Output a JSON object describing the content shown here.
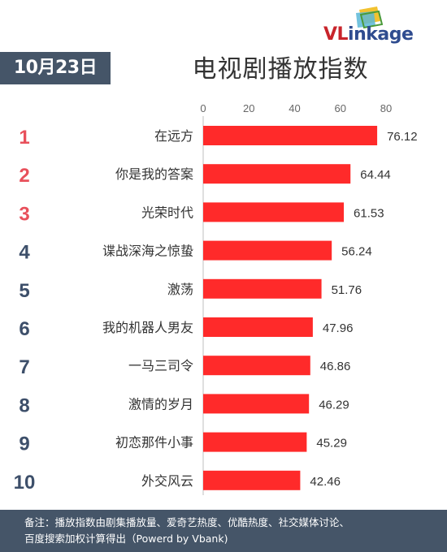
{
  "logo": {
    "text_v": "VL",
    "text_rest": "inkage"
  },
  "date": "10月23日",
  "title": "电视剧播放指数",
  "footer": {
    "line1": "备注：播放指数由剧集播放量、爱奇艺热度、优酷热度、社交媒体讨论、",
    "line2": "百度搜索加权计算得出（Powerd by Vbank)"
  },
  "colors": {
    "bar": "#ff2a2a",
    "rank_top": "#e8505b",
    "rank_rest": "#3d4f6a",
    "header_bg": "#455568"
  },
  "chart_data": {
    "type": "bar",
    "orientation": "horizontal",
    "categories": [
      "在远方",
      "你是我的答案",
      "光荣时代",
      "谍战深海之惊蛰",
      "激荡",
      "我的机器人男友",
      "一马三司令",
      "激情的岁月",
      "初恋那件小事",
      "外交风云"
    ],
    "ranks": [
      "1",
      "2",
      "3",
      "4",
      "5",
      "6",
      "7",
      "8",
      "9",
      "10"
    ],
    "values": [
      76.12,
      64.44,
      61.53,
      56.24,
      51.76,
      47.96,
      46.86,
      46.29,
      45.29,
      42.46
    ],
    "xlim": [
      0,
      80
    ],
    "xticks": [
      "0",
      "20",
      "40",
      "60",
      "80"
    ],
    "grid": false
  }
}
